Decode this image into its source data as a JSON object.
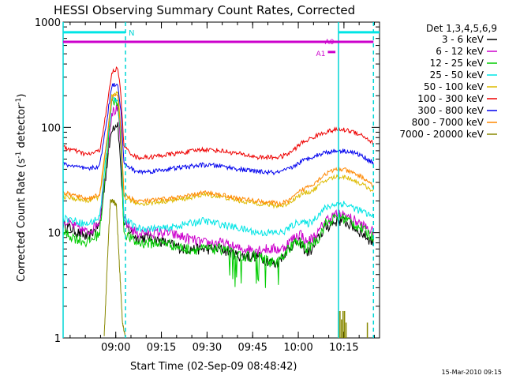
{
  "chart_data": {
    "type": "line",
    "title": "HESSI Observing Summary Count Rates, Corrected",
    "xlabel": "Start Time (02-Sep-09 08:48:42)",
    "ylabel": "Corrected Count Rate (s",
    "ylabel_sup1": "-1",
    "ylabel_mid": " detector",
    "ylabel_sup2": "-1",
    "ylabel_end": ")",
    "x_unit": "minutes since 08:48:42",
    "xlim": [
      -6,
      98
    ],
    "yscale": "log",
    "ylim": [
      1,
      1000
    ],
    "x_ticks": [
      {
        "label": "09:00",
        "value": 11.3
      },
      {
        "label": "09:15",
        "value": 26.3
      },
      {
        "label": "09:30",
        "value": 41.3
      },
      {
        "label": "09:45",
        "value": 56.3
      },
      {
        "label": "10:00",
        "value": 71.3
      },
      {
        "label": "10:15",
        "value": 86.3
      }
    ],
    "y_ticks": [
      {
        "label": "1",
        "value": 1
      },
      {
        "label": "10",
        "value": 10
      },
      {
        "label": "100",
        "value": 100
      },
      {
        "label": "1000",
        "value": 1000
      }
    ],
    "legend_title": "Det 1,3,4,5,6,9",
    "legend_position": "top-right outside",
    "series": [
      {
        "name": "3 - 6 keV",
        "color": "#000000",
        "x": [
          -6,
          2,
          6,
          8,
          10,
          12,
          13,
          14,
          18,
          22,
          28,
          34,
          40,
          46,
          52,
          58,
          64,
          66,
          68,
          70,
          72,
          74,
          76,
          78,
          80,
          82,
          84,
          86,
          88,
          90,
          92,
          94,
          96
        ],
        "y": [
          12,
          9,
          12,
          35,
          100,
          110,
          40,
          12,
          9,
          9,
          8,
          7,
          7,
          7,
          6,
          6,
          5,
          6,
          7,
          8,
          8,
          6.5,
          7,
          9,
          11,
          12,
          13,
          13,
          12,
          11,
          10,
          9,
          8
        ]
      },
      {
        "name": "6 - 12 keV",
        "color": "#cc00cc",
        "x": [
          -6,
          2,
          6,
          8,
          10,
          12,
          13,
          14,
          18,
          22,
          28,
          34,
          40,
          46,
          52,
          58,
          64,
          66,
          68,
          70,
          72,
          74,
          76,
          78,
          80,
          82,
          84,
          86,
          88,
          90,
          92,
          94,
          96
        ],
        "y": [
          13,
          10,
          13,
          40,
          140,
          150,
          60,
          13,
          10,
          10,
          10,
          9,
          8,
          8,
          7,
          7,
          7,
          7,
          8,
          9,
          10,
          8,
          9,
          10,
          13,
          14,
          15,
          15,
          14,
          13,
          12,
          11,
          10
        ]
      },
      {
        "name": "12 - 25 keV",
        "color": "#00cc00",
        "x": [
          -6,
          2,
          6,
          8,
          10,
          12,
          13,
          14,
          18,
          22,
          28,
          34,
          40,
          46,
          52,
          58,
          64,
          66,
          68,
          70,
          72,
          74,
          76,
          78,
          80,
          82,
          84,
          86,
          88,
          90,
          92,
          94,
          96
        ],
        "y": [
          10,
          8,
          10,
          40,
          170,
          180,
          70,
          10,
          8,
          8,
          8,
          7,
          7,
          7,
          6,
          6,
          5,
          6,
          7,
          8,
          8,
          7,
          8,
          9,
          12,
          13,
          14,
          14,
          13,
          12,
          11,
          10,
          9
        ]
      },
      {
        "name": "25 - 50 keV",
        "color": "#00e5e5",
        "x": [
          -6,
          2,
          6,
          8,
          10,
          12,
          13,
          14,
          18,
          22,
          28,
          34,
          40,
          46,
          52,
          58,
          64,
          66,
          68,
          70,
          72,
          74,
          76,
          78,
          80,
          82,
          84,
          86,
          88,
          90,
          92,
          94,
          96
        ],
        "y": [
          14,
          12,
          14,
          50,
          185,
          190,
          80,
          14,
          11,
          11,
          11,
          12,
          13,
          12,
          11,
          10,
          10,
          10,
          11,
          12,
          13,
          12,
          13,
          15,
          17,
          18,
          19,
          19,
          18,
          17,
          16,
          15,
          14
        ]
      },
      {
        "name": "50 - 100 keV",
        "color": "#ddbb00",
        "x": [
          -6,
          2,
          6,
          8,
          10,
          12,
          13,
          14,
          18,
          22,
          28,
          34,
          40,
          46,
          52,
          58,
          64,
          66,
          68,
          70,
          72,
          74,
          76,
          78,
          80,
          82,
          84,
          86,
          88,
          90,
          92,
          94,
          96
        ],
        "y": [
          22,
          20,
          22,
          60,
          200,
          210,
          90,
          22,
          19,
          19,
          20,
          21,
          23,
          22,
          20,
          19,
          18,
          18,
          19,
          21,
          23,
          24,
          25,
          28,
          31,
          33,
          34,
          34,
          33,
          31,
          29,
          27,
          25
        ]
      },
      {
        "name": "100 - 300 keV",
        "color": "#ee0000",
        "x": [
          -6,
          2,
          6,
          8,
          10,
          12,
          13,
          14,
          18,
          22,
          28,
          34,
          40,
          46,
          52,
          58,
          64,
          66,
          68,
          70,
          72,
          74,
          76,
          78,
          80,
          82,
          84,
          86,
          88,
          90,
          92,
          94,
          96
        ],
        "y": [
          65,
          55,
          60,
          130,
          330,
          370,
          200,
          65,
          52,
          52,
          55,
          58,
          62,
          60,
          56,
          52,
          52,
          53,
          56,
          62,
          70,
          75,
          80,
          85,
          90,
          93,
          95,
          95,
          93,
          90,
          85,
          78,
          70
        ]
      },
      {
        "name": "300 - 800 keV",
        "color": "#0000ee",
        "x": [
          -6,
          2,
          6,
          8,
          10,
          12,
          13,
          14,
          18,
          22,
          28,
          34,
          40,
          46,
          52,
          58,
          64,
          66,
          68,
          70,
          72,
          74,
          76,
          78,
          80,
          82,
          84,
          86,
          88,
          90,
          92,
          94,
          96
        ],
        "y": [
          45,
          40,
          43,
          100,
          250,
          260,
          140,
          45,
          38,
          38,
          40,
          42,
          44,
          43,
          40,
          38,
          37,
          38,
          40,
          43,
          47,
          50,
          53,
          55,
          58,
          59,
          60,
          60,
          59,
          57,
          54,
          50,
          46
        ]
      },
      {
        "name": "800 - 7000 keV",
        "color": "#ff8800",
        "x": [
          -6,
          2,
          6,
          8,
          10,
          12,
          13,
          14,
          18,
          22,
          28,
          34,
          40,
          46,
          52,
          58,
          64,
          66,
          68,
          70,
          72,
          74,
          76,
          78,
          80,
          82,
          84,
          86,
          88,
          90,
          92,
          94,
          96
        ],
        "y": [
          24,
          21,
          23,
          62,
          190,
          200,
          92,
          23,
          20,
          20,
          21,
          22,
          24,
          23,
          21,
          20,
          19,
          19,
          20,
          22,
          25,
          27,
          29,
          32,
          36,
          38,
          40,
          40,
          38,
          36,
          34,
          31,
          28
        ]
      },
      {
        "name": "7000 - 20000 keV",
        "color": "#888800",
        "x": [
          7.5,
          8.5,
          9.5,
          10.5,
          11.5,
          12.5,
          13.5,
          14.5
        ],
        "y": [
          1.0,
          5,
          20,
          20,
          18,
          5,
          1.4,
          1.0
        ]
      }
    ],
    "bursts": [
      {
        "x": 84.5,
        "y": 1.8
      },
      {
        "x": 85.0,
        "y": 1.8
      },
      {
        "x": 85.5,
        "y": 1.5
      },
      {
        "x": 86.0,
        "y": 1.8
      },
      {
        "x": 86.5,
        "y": 1.8
      },
      {
        "x": 87.0,
        "y": 1.4
      },
      {
        "x": 94.0,
        "y": 1.4
      }
    ],
    "annotations": {
      "night_label": "N",
      "night_bars": [
        {
          "x": [
            -6,
            14.5
          ],
          "y": 800
        },
        {
          "x": [
            84.5,
            98
          ],
          "y": 800
        }
      ],
      "attenuator_a0_label": "A0",
      "attenuator_a0": {
        "x": [
          -6,
          96
        ],
        "y": 650
      },
      "attenuator_a1_label": "A1",
      "attenuator_a1": {
        "x": [
          81,
          83.5
        ],
        "y": 520
      },
      "vlines": [
        -6,
        14.5,
        84.5,
        96
      ]
    }
  },
  "footer_timestamp": "15-Mar-2010 09:15"
}
